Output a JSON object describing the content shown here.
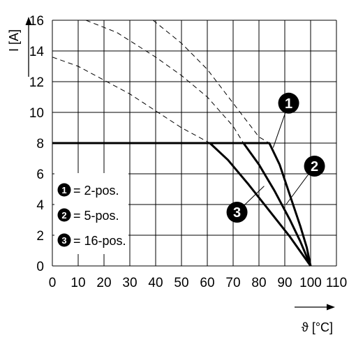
{
  "chart_data": {
    "type": "line",
    "xlabel": "ϑ [°C]",
    "ylabel": "I [A]",
    "xlim": [
      0,
      110
    ],
    "ylim": [
      0,
      16
    ],
    "x_ticks": [
      0,
      10,
      20,
      30,
      40,
      50,
      60,
      70,
      80,
      90,
      100,
      110
    ],
    "y_ticks": [
      0,
      2,
      4,
      6,
      8,
      10,
      12,
      14,
      16
    ],
    "grid": true,
    "legend_position": "bottom-left",
    "series": [
      {
        "name": "2-pos.",
        "marker": "1",
        "style": "solid",
        "points": [
          [
            0,
            8
          ],
          [
            84,
            8
          ],
          [
            88,
            6.6
          ],
          [
            92,
            4.6
          ],
          [
            96,
            2.6
          ],
          [
            98.5,
            1.2
          ],
          [
            100,
            0
          ]
        ]
      },
      {
        "name": "5-pos.",
        "marker": "2",
        "style": "solid",
        "points": [
          [
            0,
            8
          ],
          [
            74,
            8
          ],
          [
            80,
            6.6
          ],
          [
            86,
            4.9
          ],
          [
            92,
            3.0
          ],
          [
            96,
            1.6
          ],
          [
            100,
            0
          ]
        ]
      },
      {
        "name": "16-pos.",
        "marker": "3",
        "style": "solid",
        "points": [
          [
            0,
            8
          ],
          [
            61,
            8
          ],
          [
            68,
            6.9
          ],
          [
            76,
            5.3
          ],
          [
            84,
            3.6
          ],
          [
            92,
            1.9
          ],
          [
            100,
            0
          ]
        ]
      },
      {
        "name": "",
        "marker": "1",
        "style": "dashed",
        "points": [
          [
            39,
            16
          ],
          [
            50,
            14.5
          ],
          [
            60,
            12.8
          ],
          [
            70,
            10.6
          ],
          [
            80,
            8.4
          ],
          [
            84,
            8
          ]
        ]
      },
      {
        "name": "",
        "marker": "2",
        "style": "dashed",
        "points": [
          [
            13,
            16
          ],
          [
            25,
            15.2
          ],
          [
            40,
            13.6
          ],
          [
            50,
            12.4
          ],
          [
            60,
            11
          ],
          [
            70,
            9.1
          ],
          [
            74,
            8
          ]
        ]
      },
      {
        "name": "",
        "marker": "3",
        "style": "dashed",
        "points": [
          [
            0,
            13.6
          ],
          [
            10,
            13
          ],
          [
            20,
            12.1
          ],
          [
            30,
            11.2
          ],
          [
            40,
            10.1
          ],
          [
            50,
            9
          ],
          [
            61,
            8
          ]
        ]
      }
    ],
    "callouts": [
      {
        "label": "1",
        "x": 91.5,
        "y": 10.6,
        "target_x": 85.5,
        "target_y": 7.7
      },
      {
        "label": "2",
        "x": 101.5,
        "y": 6.5,
        "target_x": 90.5,
        "target_y": 4.0
      },
      {
        "label": "3",
        "x": 71.5,
        "y": 3.5,
        "target_x": 82.0,
        "target_y": 5.2
      }
    ],
    "legend": [
      {
        "marker": "1",
        "text": "= 2-pos."
      },
      {
        "marker": "2",
        "text": "= 5-pos."
      },
      {
        "marker": "3",
        "text": "= 16-pos."
      }
    ]
  }
}
